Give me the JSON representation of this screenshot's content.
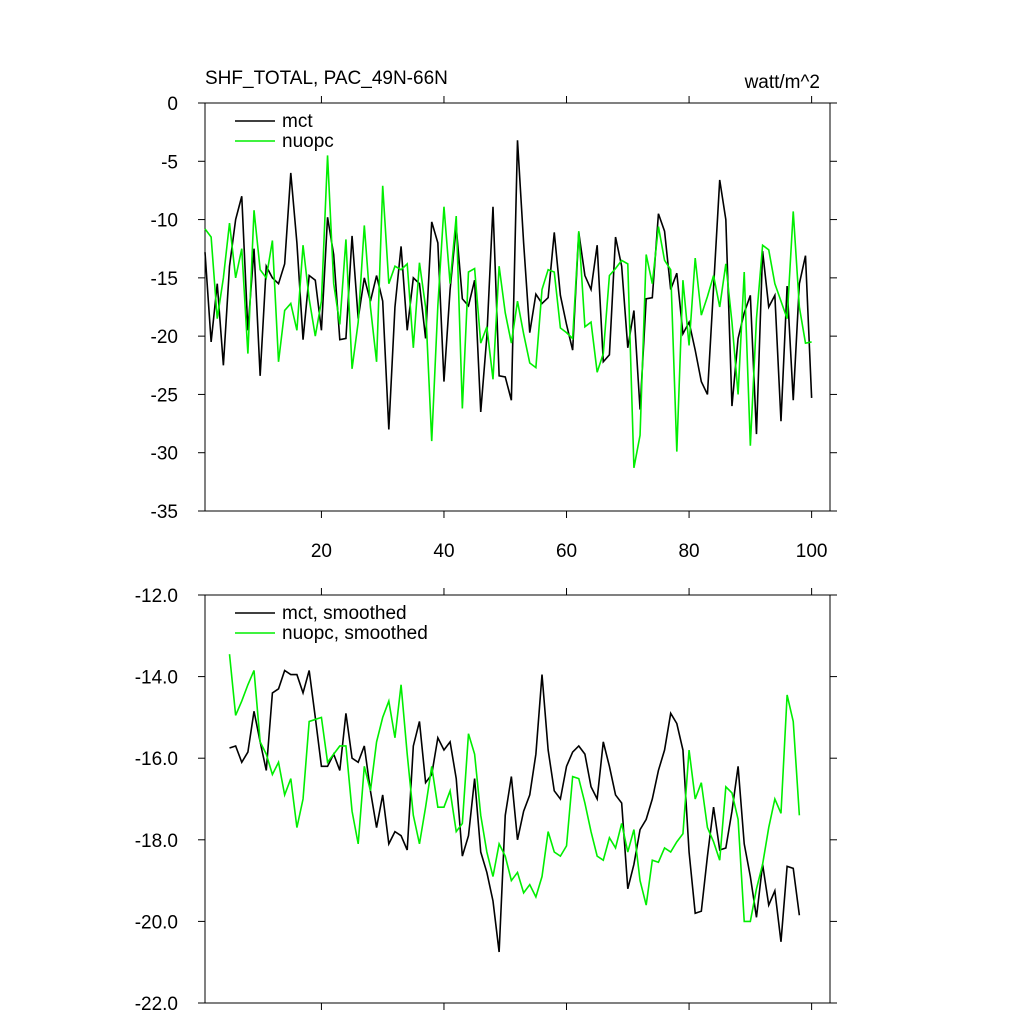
{
  "chart_data": [
    {
      "type": "line",
      "title": "SHF_TOTAL, PAC_49N-66N",
      "units_label": "watt/m^2",
      "xlim": [
        1,
        103
      ],
      "xticks": [
        20,
        40,
        60,
        80,
        100
      ],
      "ylim": [
        -35,
        0
      ],
      "yticks": [
        0,
        -5,
        -10,
        -15,
        -20,
        -25,
        -30,
        -35
      ],
      "legend": "top-left",
      "x": [
        1,
        2,
        3,
        4,
        5,
        6,
        7,
        8,
        9,
        10,
        11,
        12,
        13,
        14,
        15,
        16,
        17,
        18,
        19,
        20,
        21,
        22,
        23,
        24,
        25,
        26,
        27,
        28,
        29,
        30,
        31,
        32,
        33,
        34,
        35,
        36,
        37,
        38,
        39,
        40,
        41,
        42,
        43,
        44,
        45,
        46,
        47,
        48,
        49,
        50,
        51,
        52,
        53,
        54,
        55,
        56,
        57,
        58,
        59,
        60,
        61,
        62,
        63,
        64,
        65,
        66,
        67,
        68,
        69,
        70,
        71,
        72,
        73,
        74,
        75,
        76,
        77,
        78,
        79,
        80,
        81,
        82,
        83,
        84,
        85,
        86,
        87,
        88,
        89,
        90,
        91,
        92,
        93,
        94,
        95,
        96,
        97,
        98,
        99,
        100
      ],
      "series": [
        {
          "name": "mct",
          "color": "#000000",
          "values": [
            -12.8,
            -20.5,
            -15.5,
            -22.5,
            -14,
            -10,
            -8,
            -19.5,
            -12.5,
            -23.4,
            -14,
            -15,
            -15.5,
            -13.8,
            -6,
            -12,
            -20.3,
            -14.8,
            -15.2,
            -19.5,
            -9.8,
            -13,
            -20.3,
            -20.2,
            -11.4,
            -18.5,
            -15,
            -17,
            -14.8,
            -17,
            -28,
            -17.5,
            -12.3,
            -19.5,
            -15,
            -15.5,
            -20.2,
            -10.2,
            -12,
            -23.9,
            -16,
            -10.6,
            -16.8,
            -17.4,
            -15.2,
            -26.5,
            -20,
            -8.9,
            -23.4,
            -23.5,
            -25.5,
            -3.2,
            -12,
            -19.7,
            -16.4,
            -17.2,
            -16.7,
            -11.1,
            -16.5,
            -19,
            -21.2,
            -11.1,
            -14.8,
            -16,
            -12.2,
            -22.2,
            -21.6,
            -11.5,
            -14,
            -21,
            -17.8,
            -26.3,
            -16.8,
            -16.7,
            -9.5,
            -11,
            -16,
            -14.6,
            -19.8,
            -18.8,
            -21.2,
            -23.9,
            -25,
            -15.8,
            -6.6,
            -10,
            -26,
            -20.2,
            -18,
            -16.5,
            -28.4,
            -12.7,
            -17.5,
            -16.5,
            -27.3,
            -15.7,
            -25.5,
            -15.5,
            -13.1,
            -25.3
          ]
        },
        {
          "name": "nuopc",
          "color": "#00ee00",
          "values": [
            -10.8,
            -11.5,
            -18.5,
            -15,
            -10.3,
            -15,
            -12.5,
            -21.5,
            -9.2,
            -14.3,
            -15,
            -11.8,
            -22.2,
            -17.8,
            -17.2,
            -19.5,
            -12.2,
            -16.8,
            -20,
            -17,
            -4.5,
            -15.5,
            -19,
            -11.7,
            -22.8,
            -18.8,
            -10.5,
            -17.5,
            -22.2,
            -7.1,
            -15.5,
            -14,
            -14.3,
            -13.8,
            -21,
            -13.7,
            -17.5,
            -29,
            -17.4,
            -8.9,
            -15.5,
            -9.7,
            -26.2,
            -14.5,
            -14.2,
            -20.6,
            -19.2,
            -23.7,
            -14,
            -18,
            -20.6,
            -17,
            -19.8,
            -22.3,
            -22.7,
            -16,
            -14.3,
            -14.5,
            -19.3,
            -19.7,
            -20.2,
            -11,
            -19.2,
            -18.8,
            -23.1,
            -21.5,
            -14.8,
            -14.2,
            -13.5,
            -13.8,
            -31.3,
            -28.5,
            -13,
            -15.5,
            -10.6,
            -13.5,
            -14.3,
            -29.9,
            -15.2,
            -20.8,
            -13.3,
            -18.2,
            -16.6,
            -14.8,
            -17.5,
            -13.8,
            -18.8,
            -25,
            -14.5,
            -29.4,
            -18.5,
            -12.2,
            -12.6,
            -15.5,
            -17,
            -18.5,
            -9.3,
            -17.5,
            -20.6,
            -20.5
          ]
        }
      ]
    },
    {
      "type": "line",
      "xlim": [
        1,
        103
      ],
      "ylim": [
        -22,
        -12
      ],
      "yticks": [
        {
          "value": -12,
          "label": "-12.0"
        },
        {
          "value": -14,
          "label": "-14.0"
        },
        {
          "value": -16,
          "label": "-16.0"
        },
        {
          "value": -18,
          "label": "-18.0"
        },
        {
          "value": -20,
          "label": "-20.0"
        },
        {
          "value": -22,
          "label": "-22.0"
        }
      ],
      "legend": "top-left",
      "x": [
        5,
        6,
        7,
        8,
        9,
        10,
        11,
        12,
        13,
        14,
        15,
        16,
        17,
        18,
        19,
        20,
        21,
        22,
        23,
        24,
        25,
        26,
        27,
        28,
        29,
        30,
        31,
        32,
        33,
        34,
        35,
        36,
        37,
        38,
        39,
        40,
        41,
        42,
        43,
        44,
        45,
        46,
        47,
        48,
        49,
        50,
        51,
        52,
        53,
        54,
        55,
        56,
        57,
        58,
        59,
        60,
        61,
        62,
        63,
        64,
        65,
        66,
        67,
        68,
        69,
        70,
        71,
        72,
        73,
        74,
        75,
        76,
        77,
        78,
        79,
        80,
        81,
        82,
        83,
        84,
        85,
        86,
        87,
        88,
        89,
        90,
        91,
        92,
        93,
        94,
        95,
        96,
        97,
        98
      ],
      "series": [
        {
          "name": "mct, smoothed",
          "color": "#000000",
          "values": [
            -15.75,
            -15.7,
            -16.1,
            -15.85,
            -14.85,
            -15.6,
            -16.3,
            -14.4,
            -14.3,
            -13.85,
            -13.95,
            -13.95,
            -14.4,
            -13.85,
            -15,
            -16.2,
            -16.2,
            -15.9,
            -16.3,
            -14.9,
            -16,
            -16.1,
            -15.7,
            -16.8,
            -17.7,
            -16.9,
            -18.1,
            -17.8,
            -17.9,
            -18.25,
            -15.7,
            -15.1,
            -16.6,
            -16.4,
            -15.5,
            -15.8,
            -15.6,
            -16.5,
            -18.4,
            -17.9,
            -16.5,
            -18.3,
            -18.8,
            -19.5,
            -20.75,
            -17.4,
            -16.45,
            -18,
            -17.3,
            -16.9,
            -15.9,
            -13.95,
            -15.8,
            -16.8,
            -17,
            -16.2,
            -15.85,
            -15.7,
            -15.9,
            -16.7,
            -17,
            -15.6,
            -16.2,
            -16.9,
            -17.1,
            -19.2,
            -18.6,
            -17.75,
            -17.5,
            -17,
            -16.3,
            -15.8,
            -14.9,
            -15.15,
            -15.8,
            -18.3,
            -19.8,
            -19.75,
            -18.4,
            -17.2,
            -18.25,
            -18.2,
            -17.3,
            -16.2,
            -18.1,
            -18.9,
            -19.9,
            -18.6,
            -19.6,
            -19.25,
            -20.5,
            -18.65,
            -18.7,
            -19.85
          ]
        },
        {
          "name": "nuopc, smoothed",
          "color": "#00ee00",
          "values": [
            -13.45,
            -14.95,
            -14.6,
            -14.2,
            -13.85,
            -15.6,
            -15.9,
            -16.4,
            -16.1,
            -16.9,
            -16.5,
            -17.7,
            -17,
            -15.1,
            -15.05,
            -15,
            -16.1,
            -15.9,
            -15.7,
            -15.7,
            -17.3,
            -18.1,
            -16.2,
            -16.8,
            -15.6,
            -15,
            -14.6,
            -15.5,
            -14.2,
            -15.9,
            -17.4,
            -18.1,
            -17.2,
            -16.2,
            -17.2,
            -17.2,
            -16.8,
            -17.8,
            -17.6,
            -15.4,
            -15.9,
            -17.4,
            -18.3,
            -18.9,
            -18.1,
            -18.4,
            -19,
            -18.8,
            -19.3,
            -19.1,
            -19.4,
            -18.9,
            -17.8,
            -18.3,
            -18.4,
            -18.15,
            -16.45,
            -16.5,
            -17.1,
            -17.8,
            -18.4,
            -18.5,
            -17.95,
            -18.2,
            -17.6,
            -18.3,
            -17.75,
            -19,
            -19.6,
            -18.5,
            -18.55,
            -18.2,
            -18.3,
            -18.05,
            -17.85,
            -15.8,
            -17,
            -16.6,
            -17.7,
            -18.05,
            -18.5,
            -16.7,
            -16.85,
            -17.5,
            -20,
            -20,
            -19.2,
            -18.6,
            -17.7,
            -17,
            -17.35,
            -14.45,
            -15.1,
            -17.4
          ]
        }
      ]
    }
  ]
}
